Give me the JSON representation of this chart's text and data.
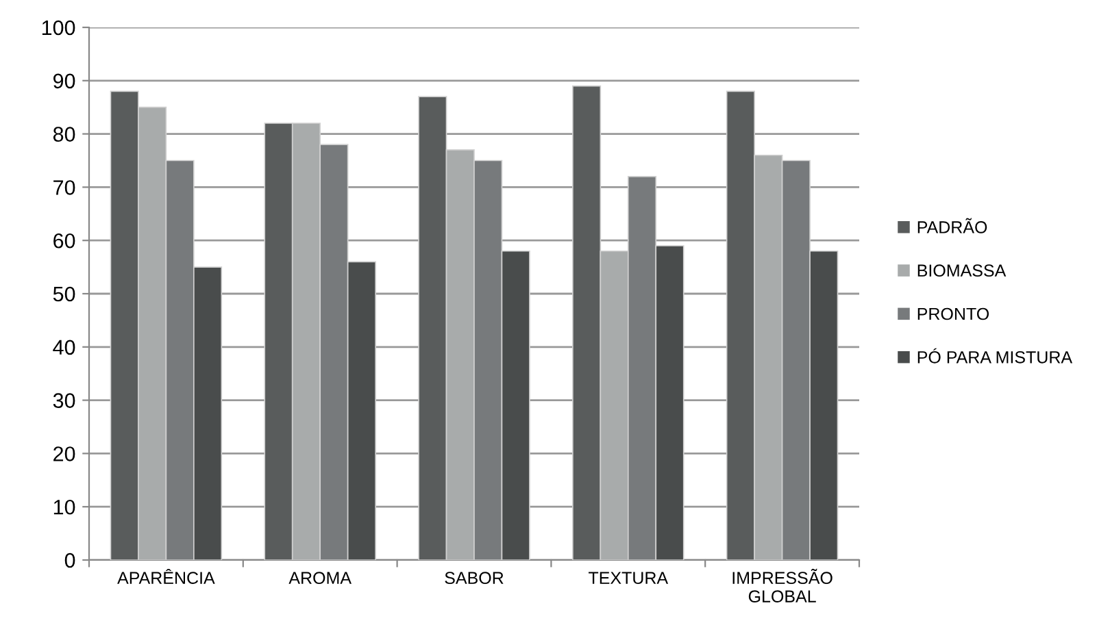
{
  "chart_data": {
    "type": "bar",
    "categories": [
      "APARÊNCIA",
      "AROMA",
      "SABOR",
      "TEXTURA",
      "IMPRESSÃO\nGLOBAL"
    ],
    "series": [
      {
        "name": "PADRÃO",
        "color": "#595c5c",
        "values": [
          88,
          82,
          87,
          89,
          88
        ]
      },
      {
        "name": "BIOMASSA",
        "color": "#a8abab",
        "values": [
          85,
          82,
          77,
          58,
          76
        ]
      },
      {
        "name": "PRONTO",
        "color": "#777a7c",
        "values": [
          75,
          78,
          75,
          72,
          75
        ]
      },
      {
        "name": "PÓ PARA MISTURA",
        "color": "#494c4c",
        "values": [
          55,
          56,
          58,
          59,
          58
        ]
      }
    ],
    "ylim": [
      0,
      100
    ],
    "yticks": [
      0,
      10,
      20,
      30,
      40,
      50,
      60,
      70,
      80,
      90,
      100
    ],
    "grid": "y",
    "legend": "right"
  }
}
